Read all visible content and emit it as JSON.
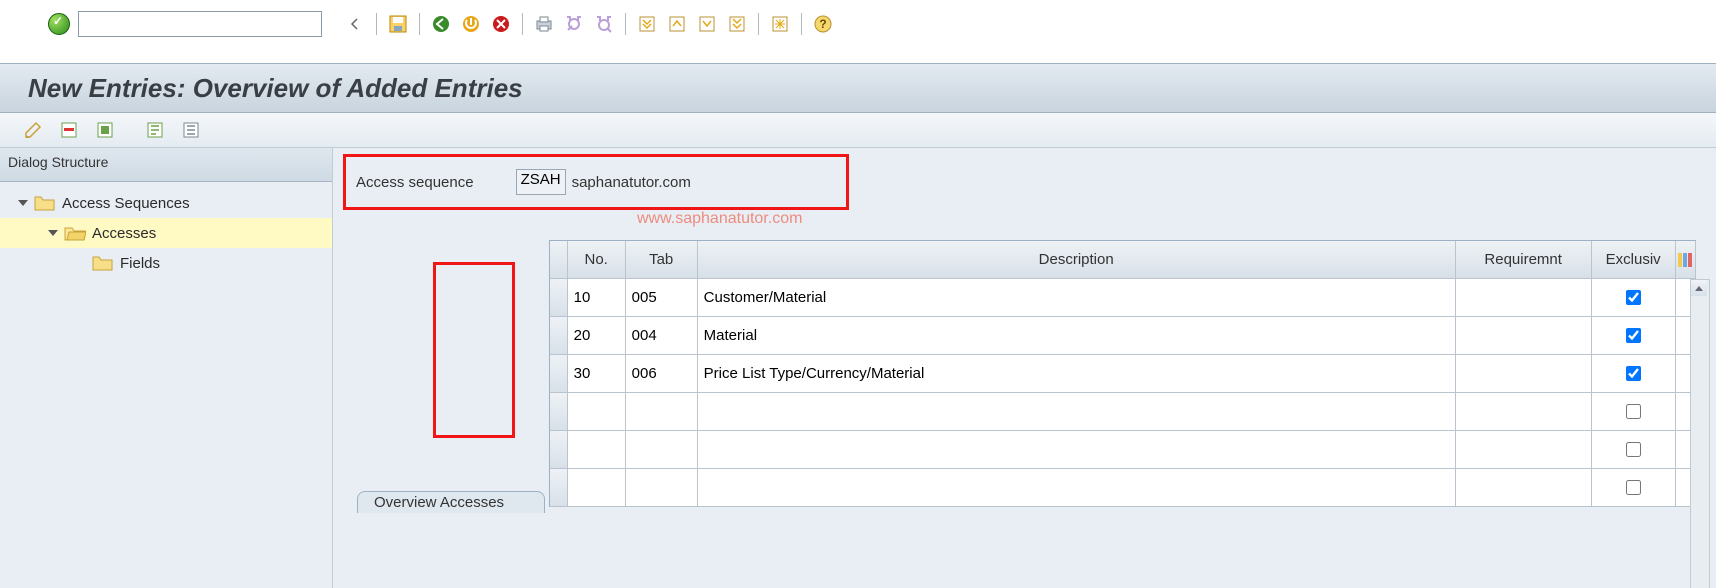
{
  "title": "New Entries: Overview of Added Entries",
  "tree": {
    "header": "Dialog Structure",
    "root_label": "Access Sequences",
    "child_label": "Accesses",
    "grandchild_label": "Fields"
  },
  "header": {
    "label": "Access sequence",
    "code": "ZSAH",
    "desc": "saphanatutor.com"
  },
  "watermark": "www.saphanatutor.com",
  "grid": {
    "title": "Overview Accesses",
    "columns": {
      "no": "No.",
      "tab": "Tab",
      "desc": "Description",
      "req": "Requiremnt",
      "exc": "Exclusiv"
    },
    "rows": [
      {
        "no": "10",
        "tab": "005",
        "desc": "Customer/Material",
        "req": "",
        "exc": true
      },
      {
        "no": "20",
        "tab": "004",
        "desc": "Material",
        "req": "",
        "exc": true
      },
      {
        "no": "30",
        "tab": "006",
        "desc": "Price List Type/Currency/Material",
        "req": "",
        "exc": true
      },
      {
        "no": "",
        "tab": "",
        "desc": "",
        "req": "",
        "exc": false
      },
      {
        "no": "",
        "tab": "",
        "desc": "",
        "req": "",
        "exc": false
      },
      {
        "no": "",
        "tab": "",
        "desc": "",
        "req": "",
        "exc": false
      }
    ]
  },
  "colors": {
    "highlight": "#f21515",
    "selected_row": "#fff9c4",
    "titlebar_grad_top": "#e3eaf1",
    "titlebar_grad_bot": "#c9d4de"
  }
}
